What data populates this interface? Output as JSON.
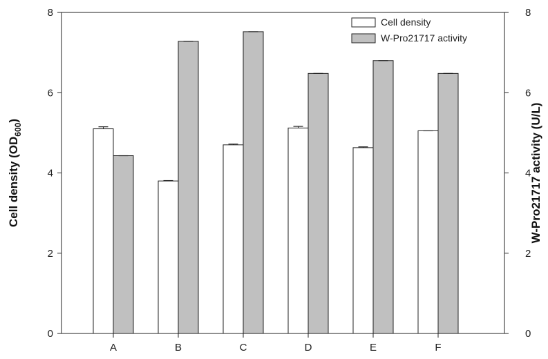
{
  "chart_data": {
    "type": "bar",
    "categories": [
      "A",
      "B",
      "C",
      "D",
      "E",
      "F"
    ],
    "series": [
      {
        "name": "Cell density",
        "axis": "left",
        "color": "#ffffff",
        "values": [
          5.1,
          3.8,
          4.7,
          5.12,
          4.63,
          5.05
        ],
        "errors": [
          0.05,
          0.01,
          0.02,
          0.04,
          0.02,
          0.0
        ]
      },
      {
        "name": "W-Pro21717 activity",
        "axis": "right",
        "color": "#c0c0c0",
        "values": [
          4.43,
          7.28,
          7.52,
          6.48,
          6.8,
          6.48
        ],
        "errors": [
          0.0,
          0.0,
          0.0,
          0.0,
          0.0,
          0.0
        ]
      }
    ],
    "y_left": {
      "label_main": "Cell density (OD",
      "label_sub": "600",
      "label_close": ")",
      "range": [
        0,
        8
      ],
      "ticks": [
        "0",
        "2",
        "4",
        "6",
        "8"
      ]
    },
    "y_right": {
      "label": "W-Pro21717 activity (U/L)",
      "range": [
        0,
        8
      ],
      "ticks": [
        "0",
        "2",
        "4",
        "6",
        "8"
      ]
    },
    "grid": false,
    "legend_position": "top-right"
  }
}
